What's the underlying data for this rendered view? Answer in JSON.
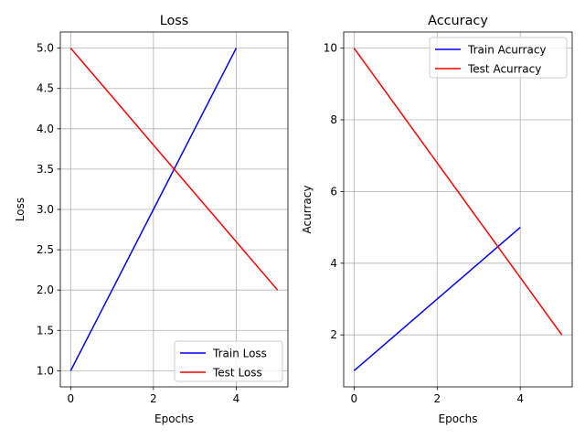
{
  "chart_data": [
    {
      "type": "line",
      "title": "Loss",
      "xlabel": "Epochs",
      "ylabel": "Loss",
      "xlim": [
        -0.25,
        5.25
      ],
      "ylim": [
        0.8,
        5.2
      ],
      "xticks": [
        0,
        2,
        4
      ],
      "yticks": [
        1.0,
        1.5,
        2.0,
        2.5,
        3.0,
        3.5,
        4.0,
        4.5,
        5.0
      ],
      "ytick_decimals": 1,
      "grid": true,
      "legend_position": "lower right",
      "series": [
        {
          "name": "Train Loss",
          "color": "#0000ff",
          "x": [
            0,
            1,
            2,
            3,
            4
          ],
          "y": [
            1,
            2,
            3,
            4,
            5
          ]
        },
        {
          "name": "Test Loss",
          "color": "#ff0000",
          "x": [
            0,
            1,
            2,
            3,
            4,
            5
          ],
          "y": [
            5,
            4.4,
            3.8,
            3.2,
            2.6,
            2
          ]
        }
      ]
    },
    {
      "type": "line",
      "title": "Accuracy",
      "xlabel": "Epochs",
      "ylabel": "Acurracy",
      "xlim": [
        -0.25,
        5.25
      ],
      "ylim": [
        0.55,
        10.45
      ],
      "xticks": [
        0,
        2,
        4
      ],
      "yticks": [
        2,
        4,
        6,
        8,
        10
      ],
      "ytick_decimals": 0,
      "grid": true,
      "legend_position": "upper right",
      "series": [
        {
          "name": "Train Acurracy",
          "color": "#0000ff",
          "x": [
            0,
            1,
            2,
            3,
            4
          ],
          "y": [
            1,
            2,
            3,
            4,
            5
          ]
        },
        {
          "name": "Test Acurracy",
          "color": "#ff0000",
          "x": [
            0,
            1,
            2,
            3,
            4,
            5
          ],
          "y": [
            10,
            8.4,
            6.8,
            5.2,
            3.6,
            2
          ]
        }
      ]
    }
  ]
}
